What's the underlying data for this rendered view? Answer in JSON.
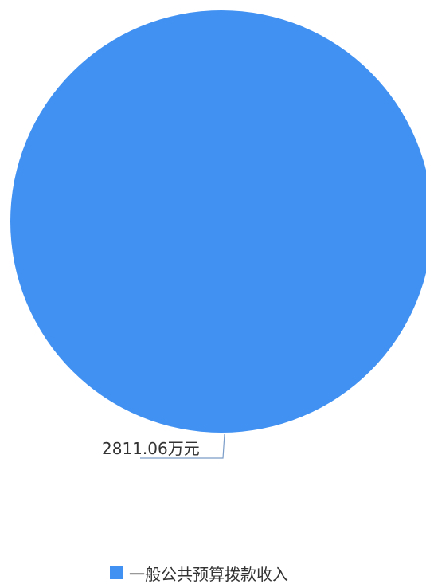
{
  "chart_data": {
    "type": "pie",
    "categories": [
      "一般公共预算拨款收入"
    ],
    "values": [
      2811.06
    ],
    "data_labels": [
      "2811.06万元"
    ],
    "colors": [
      "#4191f2"
    ],
    "legend_position": "bottom"
  }
}
